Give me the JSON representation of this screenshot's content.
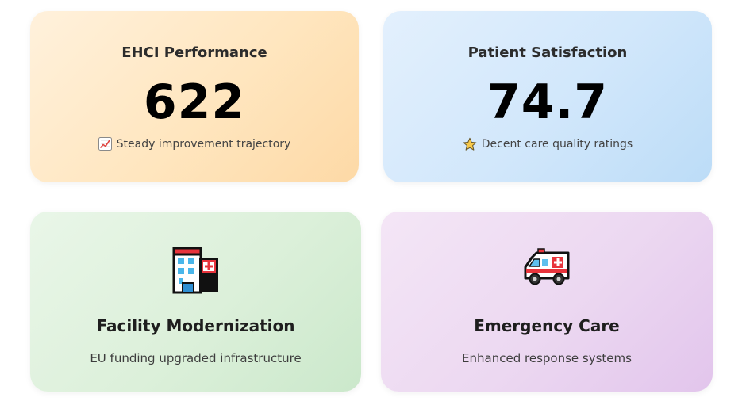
{
  "cards": {
    "ehci": {
      "title": "EHCI Performance",
      "value": "622",
      "subtitle": "Steady improvement trajectory",
      "icon": "chart-increasing-icon",
      "color": "#ffe6bf"
    },
    "satisfaction": {
      "title": "Patient Satisfaction",
      "value": "74.7",
      "subtitle": "Decent care quality ratings",
      "icon": "star-icon",
      "color": "#d1e7fb"
    },
    "facility": {
      "title": "Facility Modernization",
      "subtitle": "EU funding upgraded infrastructure",
      "icon": "hospital-icon",
      "color": "#dcf0da"
    },
    "emergency": {
      "title": "Emergency Care",
      "subtitle": "Enhanced response systems",
      "icon": "ambulance-icon",
      "color": "#ecd8f1"
    }
  }
}
